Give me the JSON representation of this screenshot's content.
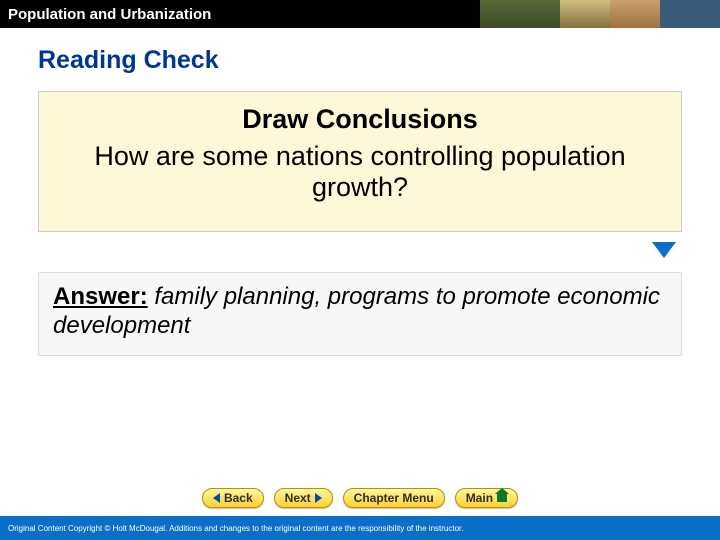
{
  "header": {
    "title": "Population and Urbanization",
    "bg_color": "#000000",
    "text_color": "#ffffff"
  },
  "section_title": "Reading Check",
  "section_title_color": "#003690",
  "question": {
    "heading": "Draw Conclusions",
    "body": "How are some nations controlling population growth?",
    "bg_color": "#fcf8d8",
    "heading_fontsize": 27,
    "body_fontsize": 27
  },
  "reveal_arrow_color": "#0b6fc7",
  "answer": {
    "label": "Answer:",
    "body": " family planning, programs to promote economic development",
    "bg_color": "#f7f7f7",
    "fontsize": 24
  },
  "nav": {
    "back": "< Back",
    "back_label": "Back",
    "next_label": "Next",
    "next": "Next >",
    "chapter_menu": "Chapter Menu",
    "main": "Main",
    "btn_gradient_top": "#fff6a0",
    "btn_gradient_bottom": "#ffd030",
    "btn_border": "#b79200",
    "arrow_color": "#0a4aa0",
    "home_color": "#0a7a2a"
  },
  "footer": {
    "text": "Original Content Copyright © Holt McDougal. Additions and changes to the original content are the responsibility of the instructor.",
    "bg_color": "#0b6fc7",
    "text_color": "#ffffff"
  }
}
